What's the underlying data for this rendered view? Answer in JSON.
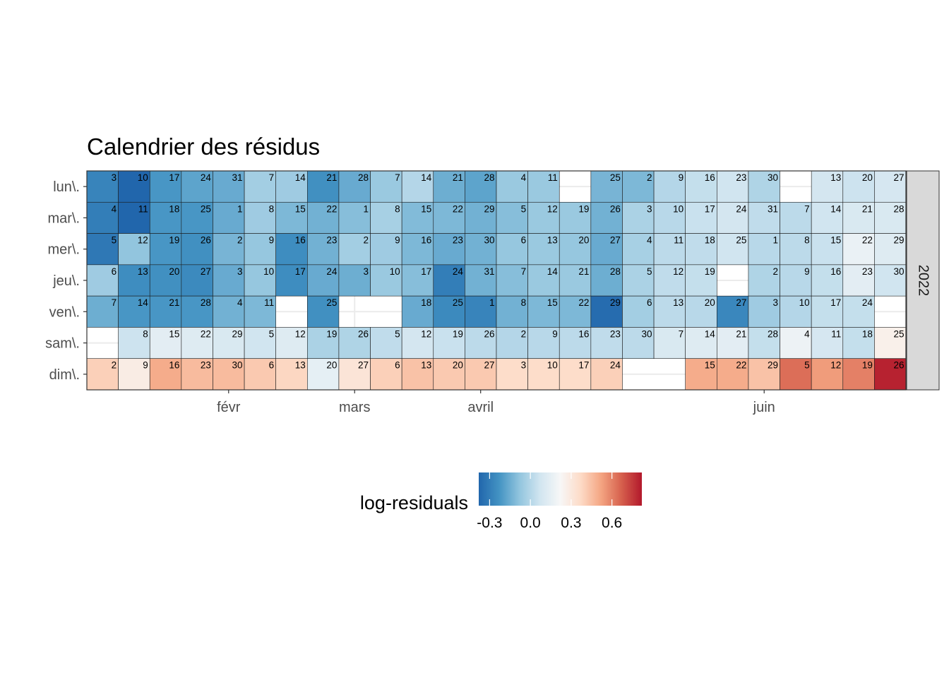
{
  "chart_data": {
    "type": "heatmap",
    "title": "Calendrier des résidus",
    "year_strip": "2022",
    "weekday_labels": [
      "lun\\.",
      "mar\\.",
      "mer\\.",
      "jeu\\.",
      "ven\\.",
      "sam\\.",
      "dim\\."
    ],
    "month_labels": [
      {
        "label": "févr",
        "week": 4.5
      },
      {
        "label": "mars",
        "week": 8.5
      },
      {
        "label": "avril",
        "week": 12.5
      },
      {
        "label": "juin",
        "week": 21.5
      }
    ],
    "weeks": [
      {
        "days": [
          [
            3,
            -0.28
          ],
          [
            4,
            -0.3
          ],
          [
            5,
            -0.32
          ],
          [
            6,
            -0.05
          ],
          [
            7,
            -0.15
          ],
          null,
          [
            2,
            0.4
          ]
        ]
      },
      {
        "days": [
          [
            10,
            -0.4
          ],
          [
            11,
            -0.38
          ],
          [
            12,
            -0.08
          ],
          [
            13,
            -0.25
          ],
          [
            14,
            -0.22
          ],
          [
            8,
            0.06
          ],
          [
            9,
            0.28
          ]
        ]
      },
      {
        "days": [
          [
            17,
            -0.22
          ],
          [
            18,
            -0.22
          ],
          [
            19,
            -0.22
          ],
          [
            20,
            -0.24
          ],
          [
            21,
            -0.22
          ],
          [
            15,
            0.14
          ],
          [
            16,
            0.5
          ]
        ]
      },
      {
        "days": [
          [
            24,
            -0.18
          ],
          [
            25,
            -0.22
          ],
          [
            26,
            -0.24
          ],
          [
            27,
            -0.26
          ],
          [
            28,
            -0.22
          ],
          [
            22,
            0.12
          ],
          [
            23,
            0.46
          ]
        ]
      },
      {
        "days": [
          [
            31,
            -0.16
          ],
          [
            1,
            -0.16
          ],
          [
            2,
            -0.13
          ],
          [
            3,
            -0.16
          ],
          [
            4,
            -0.14
          ],
          [
            29,
            0.1
          ],
          [
            30,
            0.46
          ]
        ]
      },
      {
        "days": [
          [
            7,
            -0.04
          ],
          [
            8,
            -0.05
          ],
          [
            9,
            -0.07
          ],
          [
            10,
            -0.07
          ],
          [
            11,
            -0.12
          ],
          [
            5,
            0.07
          ],
          [
            6,
            0.42
          ]
        ]
      },
      {
        "days": [
          [
            14,
            -0.05
          ],
          [
            15,
            -0.12
          ],
          [
            16,
            -0.25
          ],
          [
            17,
            -0.25
          ],
          null,
          [
            12,
            0.12
          ],
          [
            13,
            0.38
          ]
        ]
      },
      {
        "days": [
          [
            21,
            -0.24
          ],
          [
            22,
            -0.14
          ],
          [
            23,
            -0.14
          ],
          [
            24,
            -0.16
          ],
          [
            25,
            -0.24
          ],
          [
            19,
            -0.02
          ],
          [
            20,
            0.15
          ]
        ]
      },
      {
        "days": [
          [
            28,
            -0.16
          ],
          [
            1,
            -0.1
          ],
          [
            2,
            -0.04
          ],
          [
            3,
            -0.15
          ],
          null,
          [
            26,
            -0.01
          ],
          [
            27,
            0.32
          ]
        ]
      },
      {
        "days": [
          [
            7,
            -0.06
          ],
          [
            8,
            -0.03
          ],
          [
            9,
            -0.05
          ],
          [
            10,
            -0.06
          ],
          null,
          [
            5,
            0.03
          ],
          [
            6,
            0.4
          ]
        ]
      },
      {
        "days": [
          [
            14,
            0.0
          ],
          [
            15,
            -0.11
          ],
          [
            16,
            -0.12
          ],
          [
            17,
            -0.1
          ],
          [
            18,
            -0.16
          ],
          [
            12,
            0.08
          ],
          [
            13,
            0.44
          ]
        ]
      },
      {
        "days": [
          [
            21,
            -0.15
          ],
          [
            22,
            -0.12
          ],
          [
            23,
            -0.16
          ],
          [
            24,
            -0.3
          ],
          [
            25,
            -0.26
          ],
          [
            19,
            0.05
          ],
          [
            20,
            0.42
          ]
        ]
      },
      {
        "days": [
          [
            28,
            -0.18
          ],
          [
            29,
            -0.14
          ],
          [
            30,
            -0.14
          ],
          [
            31,
            -0.14
          ],
          [
            1,
            -0.28
          ],
          [
            26,
            0.02
          ],
          [
            27,
            0.42
          ]
        ]
      },
      {
        "days": [
          [
            4,
            -0.06
          ],
          [
            5,
            -0.1
          ],
          [
            6,
            -0.07
          ],
          [
            7,
            -0.1
          ],
          [
            8,
            -0.14
          ],
          [
            2,
            0.0
          ],
          [
            3,
            0.36
          ]
        ]
      },
      {
        "days": [
          [
            11,
            -0.06
          ],
          [
            12,
            -0.06
          ],
          [
            13,
            -0.06
          ],
          [
            14,
            -0.06
          ],
          [
            15,
            -0.12
          ],
          [
            9,
            0.01
          ],
          [
            10,
            0.36
          ]
        ]
      },
      {
        "days": [
          null,
          [
            19,
            -0.06
          ],
          [
            20,
            -0.07
          ],
          [
            21,
            -0.06
          ],
          [
            22,
            -0.12
          ],
          [
            16,
            0.02
          ],
          [
            17,
            0.36
          ]
        ]
      },
      {
        "days": [
          [
            25,
            -0.13
          ],
          [
            26,
            -0.14
          ],
          [
            27,
            -0.16
          ],
          [
            28,
            -0.15
          ],
          [
            29,
            -0.36
          ],
          [
            23,
            0.03
          ],
          [
            24,
            0.4
          ]
        ]
      },
      {
        "days": [
          [
            2,
            -0.12
          ],
          [
            3,
            -0.02
          ],
          [
            4,
            -0.03
          ],
          [
            5,
            -0.02
          ],
          [
            6,
            -0.04
          ],
          [
            30,
            0.02
          ],
          null
        ]
      },
      {
        "days": [
          [
            9,
            0.0
          ],
          [
            10,
            0.01
          ],
          [
            11,
            0.02
          ],
          [
            12,
            0.03
          ],
          [
            13,
            0.02
          ],
          [
            7,
            0.1
          ],
          null
        ]
      },
      {
        "days": [
          [
            16,
            0.04
          ],
          [
            17,
            0.05
          ],
          [
            18,
            0.03
          ],
          [
            19,
            0.04
          ],
          [
            20,
            0.01
          ],
          [
            14,
            0.12
          ],
          [
            15,
            0.5
          ]
        ]
      },
      {
        "days": [
          [
            23,
            0.07
          ],
          [
            24,
            0.08
          ],
          [
            25,
            0.07
          ],
          null,
          [
            27,
            -0.27
          ],
          [
            21,
            0.14
          ],
          [
            22,
            0.5
          ]
        ]
      },
      {
        "days": [
          [
            30,
            -0.01
          ],
          [
            31,
            0.03
          ],
          [
            1,
            0.01
          ],
          [
            2,
            -0.01
          ],
          [
            3,
            -0.05
          ],
          [
            28,
            0.04
          ],
          [
            29,
            0.44
          ]
        ]
      },
      {
        "days": [
          null,
          [
            7,
            0.02
          ],
          [
            8,
            0.02
          ],
          [
            9,
            0.01
          ],
          [
            10,
            0.0
          ],
          [
            4,
            0.18
          ],
          [
            5,
            0.64
          ]
        ]
      },
      {
        "days": [
          [
            13,
            0.08
          ],
          [
            14,
            0.07
          ],
          [
            15,
            0.05
          ],
          [
            16,
            0.04
          ],
          [
            17,
            0.04
          ],
          [
            11,
            0.09
          ],
          [
            12,
            0.54
          ]
        ]
      },
      {
        "days": [
          [
            20,
            0.06
          ],
          [
            21,
            0.1
          ],
          [
            22,
            0.17
          ],
          [
            23,
            0.14
          ],
          [
            24,
            0.04
          ],
          [
            18,
            0.04
          ],
          [
            19,
            0.6
          ]
        ]
      },
      {
        "days": [
          [
            27,
            0.09
          ],
          [
            28,
            0.1
          ],
          [
            29,
            0.12
          ],
          [
            30,
            0.07
          ],
          null,
          [
            25,
            0.26
          ],
          [
            26,
            0.8
          ]
        ]
      }
    ],
    "legend": {
      "title": "log-residuals",
      "ticks": [
        {
          "value": -0.3,
          "label": "-0.3"
        },
        {
          "value": 0.0,
          "label": "0.0"
        },
        {
          "value": 0.3,
          "label": "0.3"
        },
        {
          "value": 0.6,
          "label": "0.6"
        }
      ],
      "range": [
        -0.38,
        0.82
      ]
    },
    "colors": {
      "scale": [
        "#2166AC",
        "#4393C3",
        "#92C5DE",
        "#D1E5F0",
        "#F7F7F7",
        "#FDDBC7",
        "#F4A582",
        "#D6604D",
        "#B2182B"
      ],
      "strip_fill": "#D9D9D9",
      "grid_line": "#EBEBEB",
      "tile_border": "#1A1A1A",
      "axis_text": "#4D4D4D"
    }
  }
}
